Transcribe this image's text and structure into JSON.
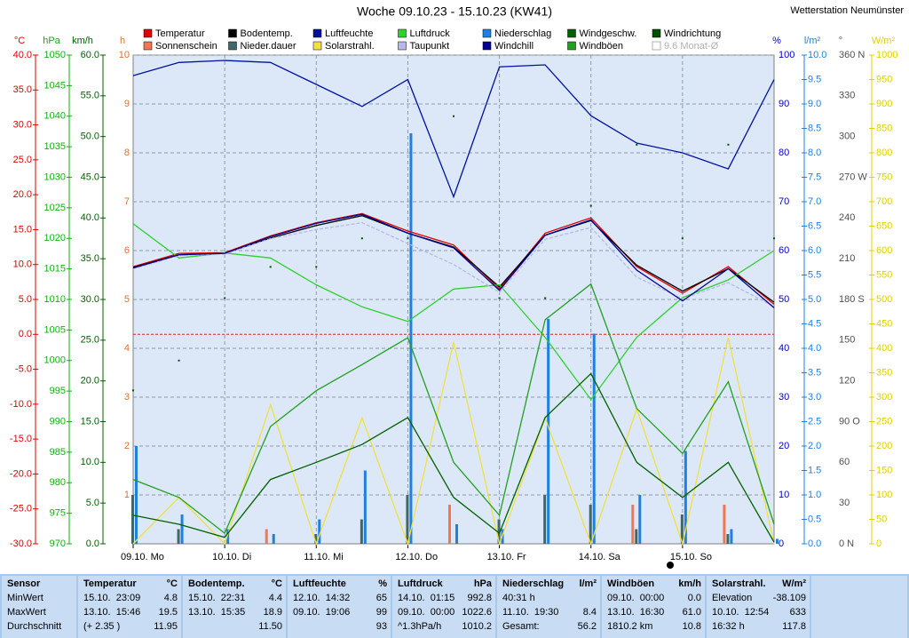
{
  "chart_data": {
    "type": "line",
    "title": "Woche 09.10.23 - 15.10.23 (KW41)",
    "station": "Wetterstation Neumünster",
    "legend_extra": "9.6 Monat-Ø",
    "xlim": [
      0,
      7
    ],
    "xticks": [
      {
        "value": 0,
        "label": "09.10. Mo"
      },
      {
        "value": 1,
        "label": "10.10. Di"
      },
      {
        "value": 2,
        "label": "11.10. Mi"
      },
      {
        "value": 3,
        "label": "12.10. Do"
      },
      {
        "value": 4,
        "label": "13.10. Fr"
      },
      {
        "value": 5,
        "label": "14.10. Sa"
      },
      {
        "value": 6,
        "label": "15.10. So"
      }
    ],
    "grid": true,
    "zero_line": {
      "axis": "temp",
      "value": 0,
      "color": "#e02020"
    },
    "axes": [
      {
        "id": "temp",
        "label": "°C",
        "color": "#e00000",
        "side": "left",
        "lim": [
          -30,
          40
        ],
        "ticks": [
          {
            "value": -30,
            "label": "-30.0"
          },
          {
            "value": -25,
            "label": "-25.0"
          },
          {
            "value": -20,
            "label": "-20.0"
          },
          {
            "value": -15,
            "label": "-15.0"
          },
          {
            "value": -10,
            "label": "-10.0"
          },
          {
            "value": -5,
            "label": "-5.0"
          },
          {
            "value": 0,
            "label": "0.0"
          },
          {
            "value": 5,
            "label": "5.0"
          },
          {
            "value": 10,
            "label": "10.0"
          },
          {
            "value": 15,
            "label": "15.0"
          },
          {
            "value": 20,
            "label": "20.0"
          },
          {
            "value": 25,
            "label": "25.0"
          },
          {
            "value": 30,
            "label": "30.0"
          },
          {
            "value": 35,
            "label": "35.0"
          },
          {
            "value": 40,
            "label": "40.0"
          }
        ]
      },
      {
        "id": "hpa",
        "label": "hPa",
        "color": "#10b010",
        "side": "left",
        "lim": [
          970,
          1050
        ],
        "ticks": [
          970,
          975,
          980,
          985,
          990,
          995,
          1000,
          1005,
          1010,
          1015,
          1020,
          1025,
          1030,
          1035,
          1040,
          1045,
          1050
        ]
      },
      {
        "id": "kmh",
        "label": "km/h",
        "color": "#006000",
        "side": "left",
        "lim": [
          0,
          60
        ],
        "ticks": [
          {
            "value": 0,
            "label": "0.0"
          },
          {
            "value": 5,
            "label": "5.0"
          },
          {
            "value": 10,
            "label": "10.0"
          },
          {
            "value": 15,
            "label": "15.0"
          },
          {
            "value": 20,
            "label": "20.0"
          },
          {
            "value": 25,
            "label": "25.0"
          },
          {
            "value": 30,
            "label": "30.0"
          },
          {
            "value": 35,
            "label": "35.0"
          },
          {
            "value": 40,
            "label": "40.0"
          },
          {
            "value": 45,
            "label": "45.0"
          },
          {
            "value": 50,
            "label": "50.0"
          },
          {
            "value": 55,
            "label": "55.0"
          },
          {
            "value": 60,
            "label": "60.0"
          }
        ]
      },
      {
        "id": "h",
        "label": "h",
        "color": "#e07030",
        "side": "left",
        "lim": [
          0,
          10
        ],
        "ticks": [
          1,
          2,
          3,
          4,
          5,
          6,
          7,
          8,
          9,
          10
        ]
      },
      {
        "id": "pct",
        "label": "%",
        "color": "#0000d0",
        "side": "right",
        "lim": [
          0,
          100
        ],
        "ticks": [
          0,
          10,
          20,
          30,
          40,
          50,
          60,
          70,
          80,
          90,
          100
        ]
      },
      {
        "id": "lm2",
        "label": "l/m²",
        "color": "#2080e0",
        "side": "right",
        "lim": [
          0,
          10
        ],
        "ticks": [
          {
            "value": 0,
            "label": "0.0"
          },
          {
            "value": 0.5,
            "label": "0.5"
          },
          {
            "value": 1,
            "label": "1.0"
          },
          {
            "value": 1.5,
            "label": "1.5"
          },
          {
            "value": 2,
            "label": "2.0"
          },
          {
            "value": 2.5,
            "label": "2.5"
          },
          {
            "value": 3,
            "label": "3.0"
          },
          {
            "value": 3.5,
            "label": "3.5"
          },
          {
            "value": 4,
            "label": "4.0"
          },
          {
            "value": 4.5,
            "label": "4.5"
          },
          {
            "value": 5,
            "label": "5.0"
          },
          {
            "value": 5.5,
            "label": "5.5"
          },
          {
            "value": 6,
            "label": "6.0"
          },
          {
            "value": 6.5,
            "label": "6.5"
          },
          {
            "value": 7,
            "label": "7.0"
          },
          {
            "value": 7.5,
            "label": "7.5"
          },
          {
            "value": 8,
            "label": "8.0"
          },
          {
            "value": 8.5,
            "label": "8.5"
          },
          {
            "value": 9,
            "label": "9.0"
          },
          {
            "value": 9.5,
            "label": "9.5"
          },
          {
            "value": 10,
            "label": "10.0"
          }
        ]
      },
      {
        "id": "deg",
        "label": "°",
        "color": "#505050",
        "side": "right",
        "lim": [
          0,
          360
        ],
        "ticks": [
          {
            "value": 0,
            "label": "0  N"
          },
          30,
          60,
          {
            "value": 90,
            "label": "90  O"
          },
          120,
          150,
          {
            "value": 180,
            "label": "180 S"
          },
          210,
          240,
          {
            "value": 270,
            "label": "270 W"
          },
          300,
          330,
          {
            "value": 360,
            "label": "360 N"
          }
        ]
      },
      {
        "id": "wm2",
        "label": "W/m²",
        "color": "#e0d000",
        "side": "right",
        "lim": [
          0,
          1000
        ],
        "ticks": [
          0,
          50,
          100,
          150,
          200,
          250,
          300,
          350,
          400,
          450,
          500,
          550,
          600,
          650,
          700,
          750,
          800,
          850,
          900,
          950,
          1000
        ]
      }
    ],
    "x": [
      0,
      0.5,
      1,
      1.5,
      2,
      2.5,
      3,
      3.5,
      4,
      4.5,
      5,
      5.5,
      6,
      6.5,
      7
    ],
    "series": [
      {
        "name": "Temperatur",
        "color": "#e00000",
        "type": "line",
        "axis": "temp",
        "values": [
          9.7,
          11.6,
          11.7,
          14.1,
          16.0,
          17.3,
          14.8,
          12.8,
          6.5,
          14.5,
          16.7,
          9.7,
          5.9,
          9.7,
          4.3
        ]
      },
      {
        "name": "Sonnenschein",
        "color": "#f07850",
        "type": "bar",
        "axis": "h",
        "values": [
          0,
          0,
          0,
          0.3,
          0,
          0,
          0,
          0.8,
          0,
          0,
          0,
          0.8,
          0,
          0.8,
          0
        ]
      },
      {
        "name": "Bodentemp.",
        "color": "#000000",
        "type": "line",
        "axis": "temp",
        "values": [
          9.6,
          11.4,
          11.6,
          13.8,
          15.6,
          17.0,
          14.5,
          12.5,
          6.8,
          14.2,
          16.3,
          9.9,
          6.2,
          9.4,
          4.6
        ]
      },
      {
        "name": "Nieder.dauer",
        "color": "#406868",
        "type": "bar",
        "axis": "h",
        "values": [
          1.0,
          0.3,
          0,
          0,
          0.2,
          0.5,
          1.0,
          0,
          0.5,
          1.0,
          0.8,
          0.3,
          0.6,
          0.2,
          0
        ]
      },
      {
        "name": "Luftfeuchte",
        "color": "#0010a0",
        "type": "line",
        "axis": "pct",
        "values": [
          95.8,
          98.5,
          98.9,
          98.5,
          94,
          89.5,
          95,
          71,
          97.6,
          98,
          87.6,
          82,
          80,
          76.7,
          95
        ]
      },
      {
        "name": "Solarstrahl.",
        "color": "#f0e040",
        "type": "line",
        "axis": "wm2",
        "values": [
          0,
          95,
          0,
          285,
          0,
          258,
          0,
          413,
          0,
          258,
          0,
          276,
          0,
          422,
          0
        ]
      },
      {
        "name": "Luftdruck",
        "color": "#30d030",
        "type": "line",
        "axis": "hpa",
        "values": [
          1022.4,
          1016.8,
          1017.6,
          1016.8,
          1012.4,
          1008.8,
          1006.4,
          1011.7,
          1012.4,
          1003.8,
          993.6,
          1003.8,
          1010.3,
          1013.2,
          1018.0
        ]
      },
      {
        "name": "Taupunkt",
        "color": "#b8b8e8",
        "type": "line",
        "axis": "temp",
        "values": [
          9.4,
          11.3,
          11.5,
          13.7,
          15.0,
          16.0,
          13.0,
          10.0,
          6.0,
          13.6,
          15.3,
          8.2,
          5.1,
          7.4,
          4.0
        ]
      },
      {
        "name": "Niederschlag",
        "color": "#2080e0",
        "type": "bar",
        "axis": "lm2",
        "values": [
          2.0,
          0.6,
          0.3,
          0.2,
          0.5,
          1.5,
          8.4,
          0.4,
          0.3,
          4.6,
          4.3,
          1.0,
          1.9,
          0.3,
          0.1
        ]
      },
      {
        "name": "Windchill",
        "color": "#000090",
        "type": "line",
        "axis": "temp",
        "values": [
          9.5,
          11.4,
          11.6,
          14.0,
          15.9,
          17.2,
          14.5,
          12.4,
          6.3,
          14.2,
          16.4,
          9.2,
          4.8,
          9.4,
          3.8
        ]
      },
      {
        "name": "Windgeschw.",
        "color": "#006000",
        "type": "line",
        "axis": "kmh",
        "values": [
          3.5,
          2.4,
          0.8,
          7.9,
          10.0,
          12.2,
          15.5,
          5.7,
          1.3,
          15.5,
          20.9,
          10.0,
          5.7,
          10.0,
          0.2
        ]
      },
      {
        "name": "Windböen",
        "color": "#20a020",
        "type": "line",
        "axis": "kmh",
        "values": [
          7.9,
          5.7,
          1.3,
          14.4,
          18.8,
          22.0,
          25.3,
          10.0,
          3.5,
          27.5,
          31.9,
          16.6,
          11.1,
          19.9,
          2.4
        ]
      },
      {
        "name": "Windrichtung",
        "color": "#005000",
        "type": "dots",
        "axis": "deg",
        "values": [
          113,
          135,
          181,
          204,
          204,
          225,
          225,
          315,
          181,
          181,
          249,
          294,
          225,
          294,
          225
        ]
      }
    ]
  },
  "table": {
    "row_labels": [
      "Sensor",
      "MinWert",
      "MaxWert",
      "Durchschnitt"
    ],
    "columns": [
      {
        "title": "Temperatur",
        "unit": "°C",
        "rows": [
          [
            "15.10.  23:09",
            "4.8"
          ],
          [
            "13.10.  15:46",
            "19.5"
          ],
          [
            "(+ 2.35 )",
            "11.95"
          ]
        ]
      },
      {
        "title": "Bodentemp.",
        "unit": "°C",
        "rows": [
          [
            "15.10.  22:31",
            "4.4"
          ],
          [
            "13.10.  15:35",
            "18.9"
          ],
          [
            null,
            "11.50"
          ]
        ]
      },
      {
        "title": "Luftfeuchte",
        "unit": "%",
        "rows": [
          [
            "12.10.  14:32",
            "65"
          ],
          [
            "09.10.  19:06",
            "99"
          ],
          [
            null,
            "93"
          ]
        ]
      },
      {
        "title": "Luftdruck",
        "unit": "hPa",
        "rows": [
          [
            "14.10.  01:15",
            "992.8"
          ],
          [
            "09.10.  00:00",
            "1022.6"
          ],
          [
            "^1.3hPa/h",
            "1010.2"
          ]
        ]
      },
      {
        "title": "Niederschlag",
        "unit": "l/m²",
        "rows": [
          [
            "40:31 h",
            null
          ],
          [
            "11.10.  19:30",
            "8.4"
          ],
          [
            "Gesamt:",
            "56.2"
          ]
        ]
      },
      {
        "title": "Windböen",
        "unit": "km/h",
        "rows": [
          [
            "09.10.  00:00",
            "0.0"
          ],
          [
            "13.10.  16:30",
            "61.0"
          ],
          [
            "1810.2 km",
            "10.8"
          ]
        ]
      },
      {
        "title": "Solarstrahl.",
        "unit": "W/m²",
        "rows": [
          [
            "Elevation",
            "-38.109"
          ],
          [
            "10.10.  12:54",
            "633"
          ],
          [
            "16:32 h",
            "117.8"
          ]
        ]
      }
    ]
  }
}
